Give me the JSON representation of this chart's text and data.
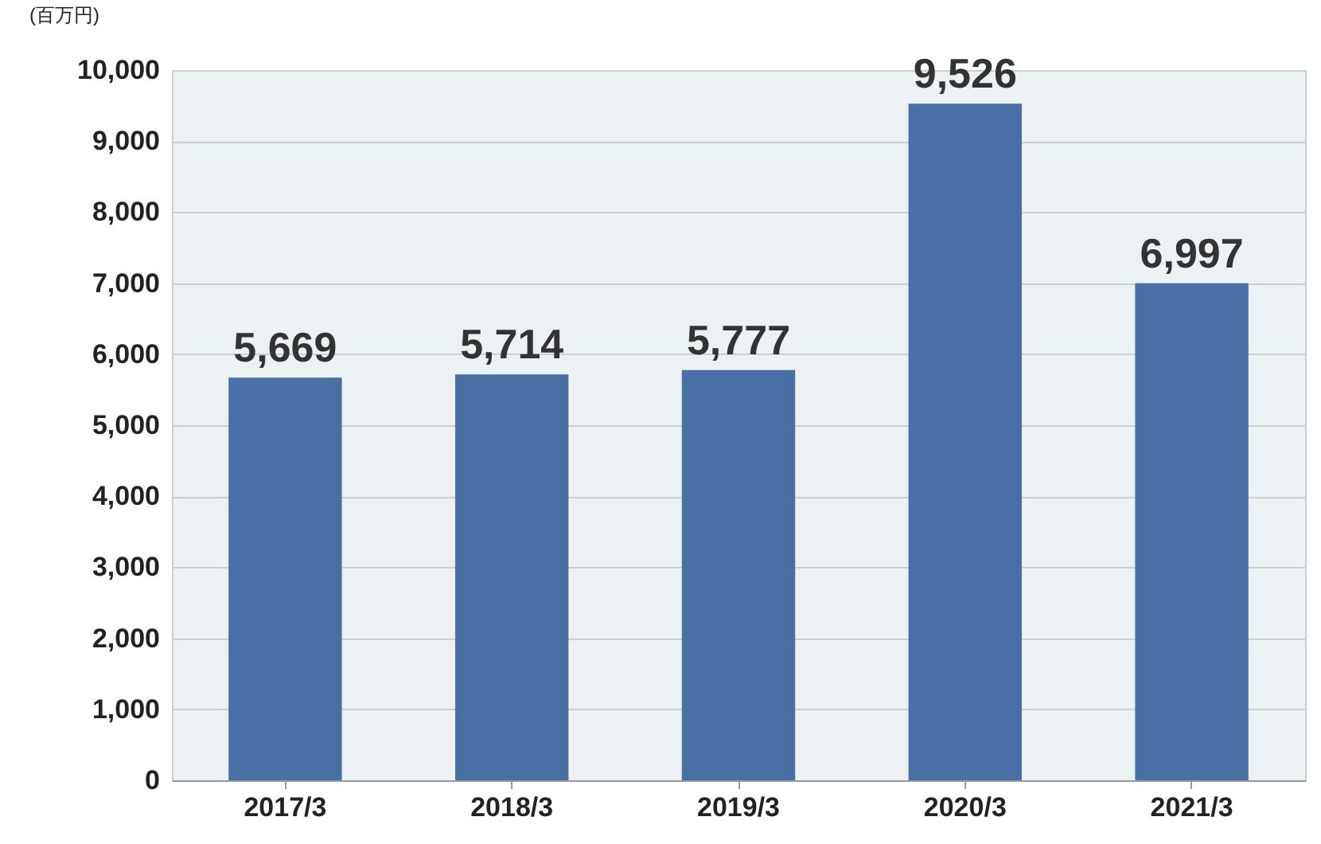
{
  "chart_data": {
    "type": "bar",
    "ylabel": "(百万円)",
    "categories": [
      "2017/3",
      "2018/3",
      "2019/3",
      "2020/3",
      "2021/3"
    ],
    "values": [
      5669,
      5714,
      5777,
      9526,
      6997
    ],
    "color": "#4a6fa5",
    "value_labels": [
      "5,669",
      "5,714",
      "5,777",
      "9,526",
      "6,997"
    ],
    "ylim": [
      0,
      10000
    ],
    "yticks": [
      0,
      {
        "value": 1000,
        "label": "1,000"
      },
      {
        "value": 2000,
        "label": "2,000"
      },
      {
        "value": 3000,
        "label": "3,000"
      },
      {
        "value": 4000,
        "label": "4,000"
      },
      {
        "value": 5000,
        "label": "5,000"
      },
      {
        "value": 6000,
        "label": "6,000"
      },
      {
        "value": 7000,
        "label": "7,000"
      },
      {
        "value": 8000,
        "label": "8,000"
      },
      {
        "value": 9000,
        "label": "9,000"
      },
      {
        "value": 10000,
        "label": "10,000"
      }
    ],
    "grid": "y"
  }
}
